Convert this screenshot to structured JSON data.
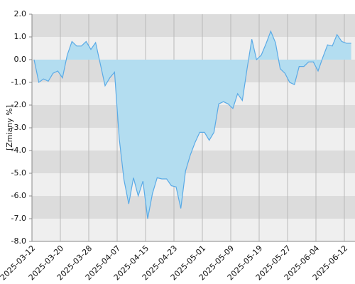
{
  "chart_data": {
    "type": "area",
    "y_label": "[Zmiany %]",
    "categories": [
      "2025-03-12",
      null,
      null,
      null,
      null,
      null,
      "2025-03-20",
      null,
      null,
      null,
      null,
      null,
      "2025-03-28",
      null,
      null,
      null,
      null,
      null,
      "2025-04-07",
      null,
      null,
      null,
      null,
      null,
      "2025-04-15",
      null,
      null,
      null,
      null,
      null,
      "2025-04-23",
      null,
      null,
      null,
      null,
      null,
      "2025-05-01",
      null,
      null,
      null,
      null,
      null,
      "2025-05-09",
      null,
      null,
      null,
      null,
      null,
      "2025-05-19",
      null,
      null,
      null,
      null,
      null,
      "2025-05-27",
      null,
      null,
      null,
      null,
      null,
      "2025-06-04",
      null,
      null,
      null,
      null,
      null,
      "2025-06-12",
      null
    ],
    "values": [
      0.0,
      -1.0,
      -0.85,
      -0.95,
      -0.6,
      -0.5,
      -0.8,
      0.2,
      0.8,
      0.6,
      0.6,
      0.8,
      0.45,
      0.75,
      -0.2,
      -1.15,
      -0.8,
      -0.55,
      -3.5,
      -5.3,
      -6.35,
      -5.2,
      -6.0,
      -5.35,
      -7.0,
      -5.9,
      -5.2,
      -5.25,
      -5.25,
      -5.55,
      -5.6,
      -6.55,
      -4.9,
      -4.2,
      -3.65,
      -3.2,
      -3.2,
      -3.55,
      -3.2,
      -1.95,
      -1.85,
      -1.95,
      -2.15,
      -1.5,
      -1.8,
      -0.4,
      0.9,
      0.0,
      0.2,
      0.7,
      1.25,
      0.75,
      -0.4,
      -0.6,
      -1.0,
      -1.1,
      -0.3,
      -0.3,
      -0.1,
      -0.1,
      -0.5,
      0.1,
      0.65,
      0.6,
      1.1,
      0.8,
      0.72,
      0.72
    ],
    "color": "#5aaae6",
    "fill": "#b3ddf0",
    "ylim": [
      -8,
      2
    ],
    "yticks": [
      {
        "value": 2,
        "label": "2.0"
      },
      {
        "value": 1,
        "label": "1.0"
      },
      {
        "value": 0,
        "label": "0.0"
      },
      {
        "value": -1,
        "label": "-1.0"
      },
      {
        "value": -2,
        "label": "-2.0"
      },
      {
        "value": -3,
        "label": "-3.0"
      },
      {
        "value": -4,
        "label": "-4.0"
      },
      {
        "value": -5,
        "label": "-5.0"
      },
      {
        "value": -6,
        "label": "-6.0"
      },
      {
        "value": -7,
        "label": "-7.0"
      },
      {
        "value": -8,
        "label": "-8.0"
      }
    ],
    "grid": true
  }
}
